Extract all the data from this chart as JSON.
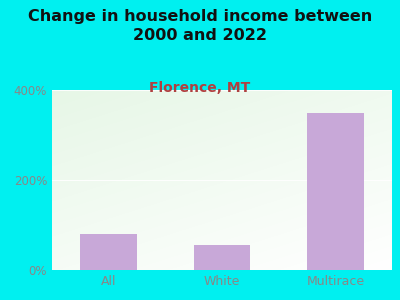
{
  "title": "Change in household income between\n2000 and 2022",
  "subtitle": "Florence, MT",
  "categories": [
    "All",
    "White",
    "Multirace"
  ],
  "values": [
    80,
    55,
    350
  ],
  "bar_color": "#c8a8d8",
  "background_outer": "#00f0f0",
  "plot_bg_topleft": "#d0ecc0",
  "plot_bg_bottomright": "#f8f8f5",
  "title_fontsize": 11.5,
  "subtitle_fontsize": 10,
  "tick_fontsize": 8.5,
  "xlabel_fontsize": 9,
  "title_color": "#111111",
  "subtitle_color": "#b04040",
  "tick_color": "#888888",
  "xlabels_color": "#888888",
  "ylim": [
    0,
    400
  ],
  "yticks": [
    0,
    200,
    400
  ],
  "ytick_labels": [
    "0%",
    "200%",
    "400%"
  ]
}
